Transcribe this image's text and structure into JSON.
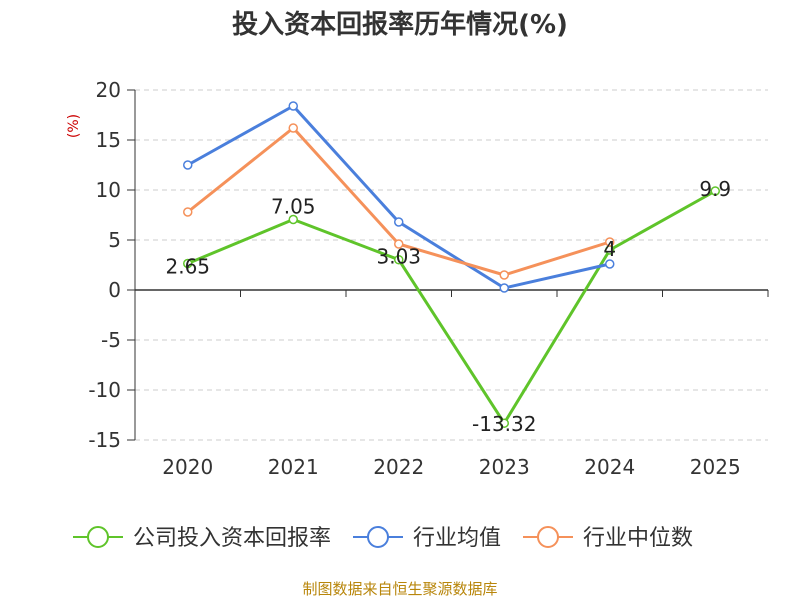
{
  "chart_data": {
    "type": "line",
    "title": "投入资本回报率历年情况(%)",
    "ylabel": "(%)",
    "xlabel": "",
    "categories": [
      "2020",
      "2021",
      "2022",
      "2023",
      "2024",
      "2025"
    ],
    "ylim": [
      -15,
      20
    ],
    "yticks": [
      20,
      15,
      10,
      5,
      0,
      -5,
      -10,
      -15
    ],
    "grid": true,
    "legend_position": "bottom",
    "series": [
      {
        "name": "公司投入资本回报率",
        "color": "#5fc42a",
        "values": [
          2.65,
          7.05,
          3.03,
          -13.32,
          4,
          9.9
        ],
        "labels": [
          "2.65",
          "7.05",
          "3.03",
          "-13.32",
          "4",
          "9.9"
        ]
      },
      {
        "name": "行业均值",
        "color": "#4a7fdc",
        "values": [
          12.5,
          18.4,
          6.8,
          0.2,
          2.6,
          null
        ]
      },
      {
        "name": "行业中位数",
        "color": "#f5915a",
        "values": [
          7.8,
          16.2,
          4.6,
          1.5,
          4.8,
          null
        ]
      }
    ]
  },
  "source": "制图数据来自恒生聚源数据库"
}
